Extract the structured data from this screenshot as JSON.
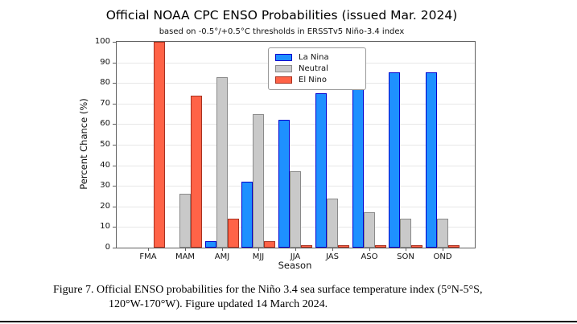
{
  "chart_data": {
    "type": "bar",
    "title": "Official NOAA CPC ENSO Probabilities (issued Mar. 2024)",
    "subtitle": "based on -0.5°/+0.5°C thresholds in ERSSTv5 Niño-3.4 index",
    "xlabel": "Season",
    "ylabel": "Percent Chance (%)",
    "categories": [
      "FMA",
      "MAM",
      "AMJ",
      "MJJ",
      "JJA",
      "JAS",
      "ASO",
      "SON",
      "OND"
    ],
    "series": [
      {
        "name": "La Nina",
        "color": "#1e90ff",
        "edge_color": "#0000cd",
        "values": [
          0,
          0,
          3,
          32,
          62,
          75,
          82,
          85,
          85
        ]
      },
      {
        "name": "Neutral",
        "color": "#c9c9c9",
        "edge_color": "#8a8a8a",
        "values": [
          0,
          26,
          83,
          65,
          37,
          24,
          17,
          14,
          14
        ]
      },
      {
        "name": "El Nino",
        "color": "#ff6347",
        "edge_color": "#a8301f",
        "values": [
          100,
          74,
          14,
          3,
          1,
          1,
          1,
          1,
          1
        ]
      }
    ],
    "ylim": [
      0,
      100
    ],
    "yticks": [
      0,
      10,
      20,
      30,
      40,
      50,
      60,
      70,
      80,
      90,
      100
    ],
    "grid": "horizontal",
    "legend_position": "top-center-inside"
  },
  "caption": {
    "line1": "Figure 7. Official ENSO probabilities for the Niño 3.4 sea surface temperature index (5°N-5°S,",
    "line2": "120°W-170°W). Figure updated 14 March 2024."
  }
}
